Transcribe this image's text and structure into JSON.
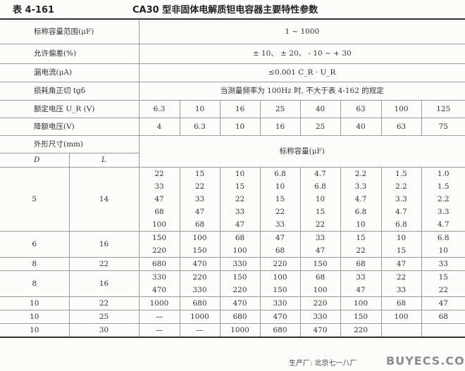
{
  "table_number": "表 4-161",
  "title": "CA30 型非固体电解质钽电容器主要特性参数",
  "specs": [
    {
      "label": "标称容量范围(μF)",
      "value": "1 ~ 1000"
    },
    {
      "label": "允许偏差(%)",
      "value": "± 10、 ± 20、 - 10 ~ + 30"
    },
    {
      "label": "漏电流(μA)",
      "value": "≤0.001 C_R · U_R"
    },
    {
      "label": "损耗角正切 tgδ",
      "value": "当测量频率为 100Hz 时, 不大于表 4-162 的规定"
    }
  ],
  "rated_voltage": {
    "label": "额定电压 U_R (V)",
    "values": [
      "6.3",
      "10",
      "16",
      "25",
      "40",
      "63",
      "100",
      "125"
    ]
  },
  "derated_voltage": {
    "label": "降额电压(V)",
    "values": [
      "4",
      "6.3",
      "10",
      "16",
      "25",
      "40",
      "63",
      "75"
    ]
  },
  "dimension_header": {
    "label": "外形尺寸(mm)",
    "d": "D",
    "l": "L",
    "capacity": "标称容量(μF)"
  },
  "groups": [
    {
      "D": "5",
      "L": "14",
      "rows": [
        [
          "22",
          "15",
          "10",
          "6.8",
          "4.7",
          "2.2",
          "1.5",
          "1.0"
        ],
        [
          "33",
          "22",
          "15",
          "10",
          "6.8",
          "3.3",
          "2.2",
          "1.5"
        ],
        [
          "47",
          "33",
          "22",
          "15",
          "10",
          "4.7",
          "3.3",
          "2.2"
        ],
        [
          "68",
          "47",
          "33",
          "22",
          "15",
          "6.8",
          "4.7",
          "3.3"
        ],
        [
          "100",
          "68",
          "47",
          "33",
          "22",
          "10",
          "6.8",
          "4.7"
        ]
      ]
    },
    {
      "D": "6",
      "L": "16",
      "rows": [
        [
          "150",
          "100",
          "68",
          "47",
          "33",
          "15",
          "10",
          "6.8"
        ],
        [
          "220",
          "150",
          "100",
          "68",
          "47",
          "22",
          "15",
          "10"
        ]
      ]
    },
    {
      "D": "8",
      "L": "22",
      "rows": [
        [
          "680",
          "470",
          "330",
          "220",
          "150",
          "68",
          "47",
          "33"
        ]
      ]
    },
    {
      "D": "8",
      "L": "16",
      "rows": [
        [
          "330",
          "220",
          "150",
          "100",
          "68",
          "33",
          "22",
          "15"
        ],
        [
          "470",
          "330",
          "220",
          "150",
          "100",
          "47",
          "33",
          "22"
        ]
      ]
    },
    {
      "D": "10",
      "L": "22",
      "rows": [
        [
          "1000",
          "680",
          "470",
          "330",
          "220",
          "100",
          "68",
          "47"
        ]
      ]
    },
    {
      "D": "10",
      "L": "25",
      "rows": [
        [
          "—",
          "1000",
          "680",
          "470",
          "330",
          "150",
          "100",
          "68"
        ]
      ]
    },
    {
      "D": "10",
      "L": "30",
      "rows": [
        [
          "—",
          "—",
          "1000",
          "680",
          "470",
          "220",
          "",
          ""
        ]
      ]
    }
  ],
  "manufacturer": "生产厂: 北京七一八厂",
  "watermark": "BUYECS.COM"
}
